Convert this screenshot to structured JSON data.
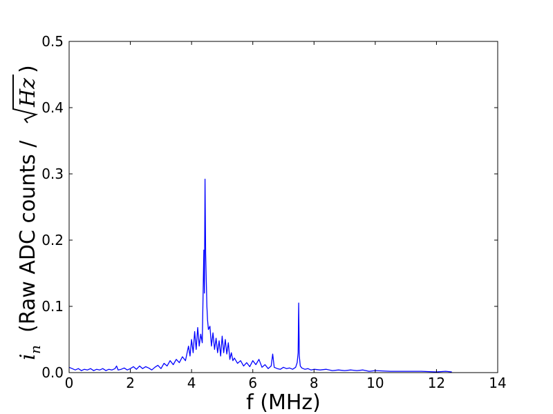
{
  "chart_data": {
    "type": "line",
    "xlabel": "f (MHz)",
    "ylabel_symbol": "i",
    "ylabel_subscript": "n",
    "ylabel_text": "(Raw ADC counts / ",
    "ylabel_radicand": "Hz",
    "ylabel_close": ")",
    "xlim": [
      0,
      14
    ],
    "ylim": [
      0,
      0.5
    ],
    "x_ticks": [
      0,
      2,
      4,
      6,
      8,
      10,
      12,
      14
    ],
    "x_tick_labels": [
      "0",
      "2",
      "4",
      "6",
      "8",
      "10",
      "12",
      "14"
    ],
    "y_ticks": [
      0,
      0.1,
      0.2,
      0.3,
      0.4,
      0.5
    ],
    "y_tick_labels": [
      "0.0",
      "0.1",
      "0.2",
      "0.3",
      "0.4",
      "0.5"
    ],
    "grid": false,
    "line_color": "#0000ff",
    "series": [
      {
        "x": [
          0.0,
          0.1,
          0.2,
          0.3,
          0.4,
          0.5,
          0.6,
          0.7,
          0.8,
          0.9,
          1.0,
          1.1,
          1.2,
          1.3,
          1.4,
          1.5,
          1.55,
          1.6,
          1.7,
          1.8,
          1.9,
          2.0,
          2.1,
          2.2,
          2.3,
          2.4,
          2.5,
          2.6,
          2.7,
          2.8,
          2.9,
          3.0,
          3.1,
          3.2,
          3.3,
          3.4,
          3.5,
          3.6,
          3.7,
          3.8,
          3.9,
          3.95,
          4.0,
          4.05,
          4.1,
          4.15,
          4.2,
          4.25,
          4.3,
          4.35,
          4.4,
          4.42,
          4.44,
          4.46,
          4.48,
          4.5,
          4.52,
          4.55,
          4.6,
          4.65,
          4.7,
          4.75,
          4.8,
          4.85,
          4.9,
          4.95,
          5.0,
          5.05,
          5.1,
          5.15,
          5.2,
          5.25,
          5.3,
          5.35,
          5.4,
          5.5,
          5.6,
          5.7,
          5.8,
          5.9,
          6.0,
          6.1,
          6.2,
          6.3,
          6.4,
          6.5,
          6.6,
          6.65,
          6.7,
          6.8,
          6.9,
          7.0,
          7.1,
          7.2,
          7.3,
          7.4,
          7.45,
          7.48,
          7.5,
          7.52,
          7.55,
          7.6,
          7.7,
          7.8,
          7.9,
          8.0,
          8.2,
          8.4,
          8.6,
          8.8,
          9.0,
          9.2,
          9.4,
          9.6,
          9.8,
          10.0,
          10.5,
          11.0,
          11.5,
          12.0,
          12.3,
          12.5
        ],
        "y": [
          0.008,
          0.006,
          0.004,
          0.006,
          0.003,
          0.005,
          0.004,
          0.006,
          0.003,
          0.005,
          0.004,
          0.006,
          0.003,
          0.005,
          0.004,
          0.006,
          0.01,
          0.004,
          0.005,
          0.007,
          0.004,
          0.006,
          0.009,
          0.005,
          0.01,
          0.006,
          0.009,
          0.007,
          0.004,
          0.008,
          0.011,
          0.006,
          0.014,
          0.01,
          0.018,
          0.012,
          0.02,
          0.015,
          0.024,
          0.018,
          0.04,
          0.025,
          0.05,
          0.03,
          0.062,
          0.035,
          0.068,
          0.04,
          0.058,
          0.045,
          0.185,
          0.12,
          0.292,
          0.18,
          0.14,
          0.1,
          0.08,
          0.065,
          0.07,
          0.04,
          0.06,
          0.035,
          0.052,
          0.03,
          0.048,
          0.025,
          0.055,
          0.03,
          0.05,
          0.028,
          0.045,
          0.02,
          0.03,
          0.018,
          0.022,
          0.014,
          0.018,
          0.01,
          0.015,
          0.009,
          0.018,
          0.012,
          0.02,
          0.008,
          0.012,
          0.006,
          0.01,
          0.028,
          0.008,
          0.006,
          0.005,
          0.008,
          0.006,
          0.007,
          0.005,
          0.008,
          0.015,
          0.03,
          0.105,
          0.025,
          0.01,
          0.007,
          0.005,
          0.006,
          0.004,
          0.005,
          0.004,
          0.005,
          0.003,
          0.004,
          0.003,
          0.004,
          0.003,
          0.004,
          0.002,
          0.003,
          0.002,
          0.002,
          0.002,
          0.001,
          0.002,
          0.001
        ]
      }
    ]
  }
}
